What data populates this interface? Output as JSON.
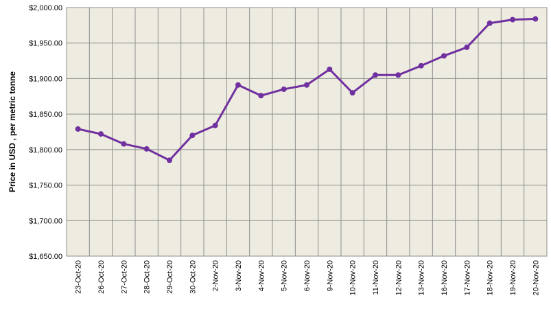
{
  "chart_data": {
    "type": "line",
    "title": "",
    "xlabel": "",
    "ylabel": "Price in USD , per metric tonne",
    "categories": [
      "23-Oct-20",
      "26-Oct-20",
      "27-Oct-20",
      "28-Oct-20",
      "29-Oct-20",
      "30-Oct-20",
      "2-Nov-20",
      "3-Nov-20",
      "4-Nov-20",
      "5-Nov-20",
      "6-Nov-20",
      "9-Nov-20",
      "10-Nov-20",
      "11-Nov-20",
      "12-Nov-20",
      "13-Nov-20",
      "16-Nov-20",
      "17-Nov-20",
      "18-Nov-20",
      "19-Nov-20",
      "20-Nov-20"
    ],
    "series": [
      {
        "values": [
          1829,
          1822,
          1808,
          1801,
          1785,
          1820,
          1834,
          1891,
          1876,
          1885,
          1891,
          1913,
          1880,
          1905,
          1905,
          1918,
          1932,
          1944,
          1978,
          1983,
          1984
        ]
      }
    ],
    "ylim": [
      1650,
      2000
    ],
    "yticks": [
      1650,
      1700,
      1750,
      1800,
      1850,
      1900,
      1950,
      2000
    ],
    "ytick_labels": [
      "$1,650.00",
      "$1,700.00",
      "$1,750.00",
      "$1,800.00",
      "$1,850.00",
      "$1,900.00",
      "$1,950.00",
      "$2,000.00"
    ],
    "grid": true,
    "colors": {
      "line": "#7030A0",
      "plot_background": "#EEEBE0",
      "grid": "#8C8C8C"
    }
  }
}
